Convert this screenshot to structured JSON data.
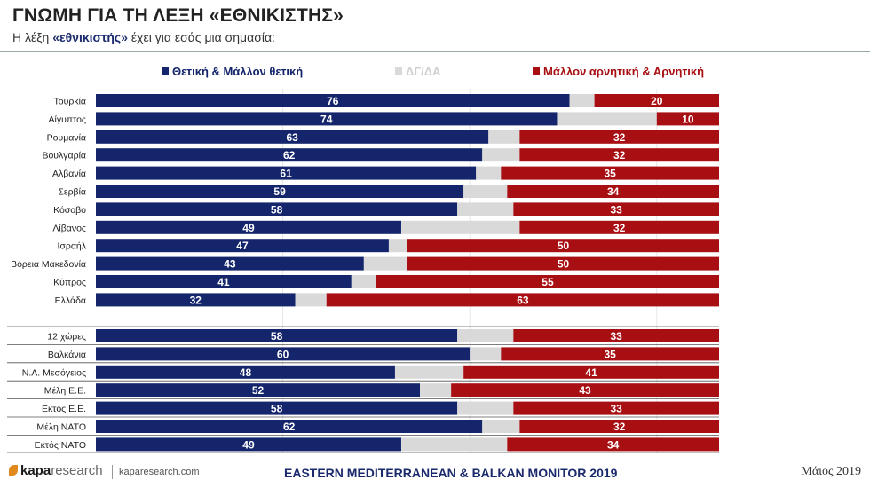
{
  "header": {
    "title": "ΓΝΩΜΗ ΓΙΑ ΤΗ ΛΕΞΗ «ΕΘΝΙΚΙΣΤΗΣ»",
    "subtitle_pre": "Η λέξη ",
    "subtitle_bold": "«εθνικιστής»",
    "subtitle_post": " έχει για εσάς μια σημασία:"
  },
  "footer": {
    "logo_k": "kapa",
    "logo_r": "research",
    "site": "kaparesearch.com",
    "monitor": "EASTERN MEDITERRANEAN & BALKAN MONITOR 2019",
    "date": "Μάιος 2019"
  },
  "colors": {
    "positive": "#14256b",
    "neutral": "#d9d9d9",
    "negative": "#a80f12"
  },
  "chart_data": {
    "type": "bar",
    "orientation": "horizontal",
    "stacked": true,
    "legend_position": "top",
    "series": [
      {
        "name": "Θετική & Μάλλον θετική",
        "color": "#14256b"
      },
      {
        "name": "ΔΓ/ΔΑ",
        "color": "#d9d9d9"
      },
      {
        "name": "Μάλλον αρνητική & Αρνητική",
        "color": "#a80f12"
      }
    ],
    "groups": [
      {
        "rows": [
          {
            "label": "Τουρκία",
            "positive": 76,
            "negative": 20
          },
          {
            "label": "Αίγυπτος",
            "positive": 74,
            "negative": 10
          },
          {
            "label": "Ρουμανία",
            "positive": 63,
            "negative": 32
          },
          {
            "label": "Βουλγαρία",
            "positive": 62,
            "negative": 32
          },
          {
            "label": "Αλβανία",
            "positive": 61,
            "negative": 35
          },
          {
            "label": "Σερβία",
            "positive": 59,
            "negative": 34
          },
          {
            "label": "Κόσοβο",
            "positive": 58,
            "negative": 33
          },
          {
            "label": "Λίβανος",
            "positive": 49,
            "negative": 32
          },
          {
            "label": "Ισραήλ",
            "positive": 47,
            "negative": 50
          },
          {
            "label": "Βόρεια Μακεδονία",
            "positive": 43,
            "negative": 50
          },
          {
            "label": "Κύπρος",
            "positive": 41,
            "negative": 55
          },
          {
            "label": "Ελλάδα",
            "positive": 32,
            "negative": 63
          }
        ]
      },
      {
        "rows": [
          {
            "label": "12 χώρες",
            "positive": 58,
            "negative": 33
          },
          {
            "label": "Βαλκάνια",
            "positive": 60,
            "negative": 35
          },
          {
            "label": "Ν.Α. Μεσόγειος",
            "positive": 48,
            "negative": 41
          },
          {
            "label": "Μέλη Ε.Ε.",
            "positive": 52,
            "negative": 43
          },
          {
            "label": "Εκτός Ε.Ε.",
            "positive": 58,
            "negative": 33
          },
          {
            "label": "Μέλη ΝΑΤΟ",
            "positive": 62,
            "negative": 32
          },
          {
            "label": "Εκτός ΝΑΤΟ",
            "positive": 49,
            "negative": 34
          }
        ]
      }
    ],
    "xlim": [
      0,
      100
    ]
  }
}
